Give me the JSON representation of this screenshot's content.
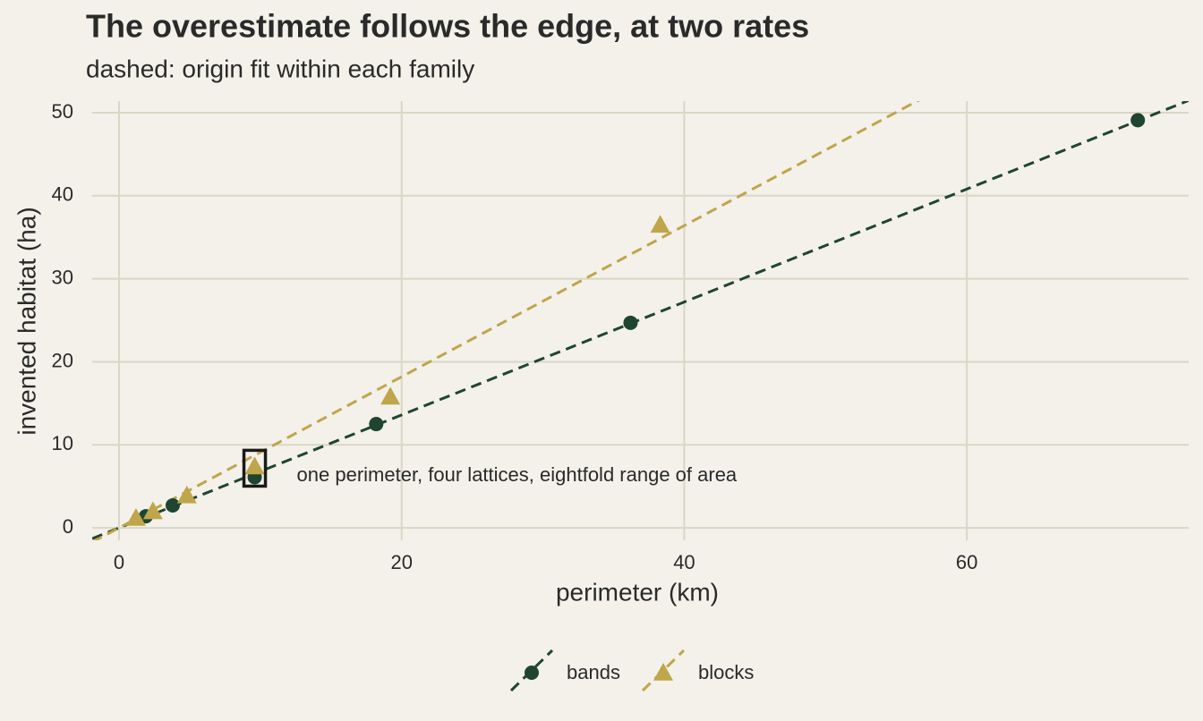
{
  "chart_data": {
    "type": "scatter",
    "title": "The overestimate follows the edge, at two rates",
    "subtitle": "dashed: origin fit within each family",
    "x_label": "perimeter (km)",
    "y_label": "invented habitat (ha)",
    "xlim": [
      -1.9,
      75.7
    ],
    "ylim": [
      -1.5,
      51.4
    ],
    "xticks": [
      0,
      20,
      40,
      60
    ],
    "yticks": [
      0,
      10,
      20,
      30,
      40,
      50
    ],
    "grid": true,
    "legend": "bottom",
    "series": [
      {
        "name": "bands",
        "color": "#1f4530",
        "marker": "circle",
        "fit_slope": 0.68,
        "x": [
          1.9,
          3.8,
          9.6,
          18.2,
          36.2,
          72.1
        ],
        "values": [
          1.4,
          2.7,
          6.1,
          12.5,
          24.7,
          49.1
        ]
      },
      {
        "name": "blocks",
        "color": "#bfa64a",
        "marker": "triangle",
        "fit_slope": 0.91,
        "x": [
          1.2,
          2.4,
          4.8,
          9.6,
          19.2,
          38.3
        ],
        "values": [
          1.2,
          2.0,
          3.9,
          7.4,
          15.8,
          36.5
        ]
      }
    ],
    "annotation": {
      "text": "one perimeter, four lattices, eightfold range of area",
      "x": 9.6
    }
  }
}
